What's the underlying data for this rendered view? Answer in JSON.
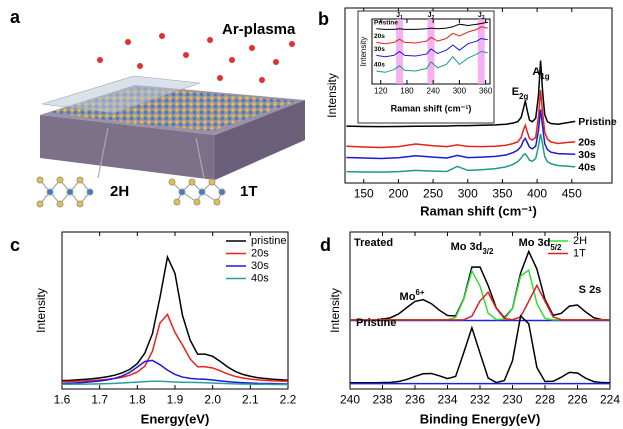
{
  "illustration": {
    "label": "a",
    "title": "Ar-plasma",
    "phases": [
      "2H",
      "1T"
    ]
  },
  "chart_data": [
    {
      "type": "line",
      "label": "b",
      "xlabel": "Raman shift (cm⁻¹)",
      "ylabel": "Intensity",
      "x": [
        125,
        150,
        175,
        200,
        225,
        250,
        270,
        285,
        300,
        320,
        340,
        355,
        365,
        372,
        377,
        380,
        383,
        386,
        389,
        393,
        398,
        402,
        405,
        408,
        411,
        415,
        420,
        430,
        445,
        455
      ],
      "xlim": [
        123,
        508
      ],
      "ylim": [
        0,
        100
      ],
      "xticks": [
        150,
        200,
        250,
        300,
        350,
        400,
        450
      ],
      "legend": "right",
      "series": [
        {
          "name": "Pristine",
          "color": "#000000",
          "values": [
            32.5,
            32.3,
            32.2,
            32.3,
            32.4,
            32.5,
            32.6,
            32.8,
            32.8,
            33,
            33.2,
            33.6,
            34.2,
            35,
            37.5,
            42,
            47,
            41,
            36,
            35,
            37,
            50,
            70,
            52,
            39,
            35,
            34,
            33.6,
            34.6,
            35.2
          ]
        },
        {
          "name": "20s",
          "color": "#e8211b",
          "values": [
            21,
            20.6,
            20.3,
            20.8,
            22.3,
            21.3,
            20.8,
            21.8,
            20.9,
            20.8,
            21,
            21.6,
            22.5,
            23.5,
            26,
            30,
            33,
            29,
            25.5,
            24.5,
            26,
            38,
            53,
            40,
            29,
            25,
            23.5,
            22.6,
            23.2,
            23.5
          ]
        },
        {
          "name": "30s",
          "color": "#1a1adb",
          "values": [
            14.6,
            14.3,
            14,
            14.4,
            15.6,
            14.8,
            14.3,
            15.8,
            14.5,
            14.8,
            15.2,
            16,
            17.3,
            18.8,
            21,
            24,
            25.5,
            23,
            20.5,
            19.5,
            21,
            30,
            42,
            32,
            22.5,
            19,
            17.6,
            16.8,
            16.6,
            16.4
          ]
        },
        {
          "name": "40s",
          "color": "#1f9a8a",
          "values": [
            6.5,
            6.3,
            6.2,
            6.5,
            7.2,
            6.8,
            6.6,
            9.5,
            7.2,
            7.6,
            8.2,
            9.2,
            10.6,
            12.2,
            14.2,
            16,
            16.6,
            15,
            13,
            12.4,
            14,
            21,
            28,
            22,
            15,
            12.2,
            11,
            10,
            9.6,
            9.2
          ]
        }
      ],
      "annotations": [
        {
          "text": "E",
          "sub": "2g"
        },
        {
          "text": "A",
          "sub": "1g"
        }
      ]
    },
    {
      "type": "line",
      "xlabel": "Raman shift (cm⁻¹)",
      "ylabel": "Intensity",
      "x": [
        110,
        130,
        150,
        163,
        175,
        200,
        225,
        235,
        250,
        270,
        285,
        300,
        320,
        340,
        350,
        365
      ],
      "xlim": [
        100,
        370
      ],
      "ylim": [
        0,
        100
      ],
      "xticks": [
        120,
        180,
        240,
        300,
        360
      ],
      "legend": "left",
      "bands": [
        {
          "label": "J",
          "sub": "1",
          "x": 163
        },
        {
          "label": "J",
          "sub": "2",
          "x": 235
        },
        {
          "label": "J",
          "sub": "3",
          "x": 350
        }
      ],
      "series": [
        {
          "name": "Pristine",
          "color": "#000000",
          "values": [
            85,
            84,
            84,
            85,
            84,
            84,
            85,
            86,
            85,
            86,
            88,
            92,
            90,
            92,
            93,
            95
          ]
        },
        {
          "name": "20s",
          "color": "#e8211b",
          "values": [
            64,
            62,
            64,
            69,
            64,
            63,
            66,
            72,
            66,
            70,
            78,
            74,
            80,
            84,
            88,
            86
          ]
        },
        {
          "name": "30s",
          "color": "#1a1adb",
          "values": [
            44,
            42,
            44,
            50,
            44,
            43,
            46,
            54,
            47,
            52,
            60,
            52,
            62,
            66,
            70,
            68
          ]
        },
        {
          "name": "40s",
          "color": "#1f9a8a",
          "values": [
            20,
            18,
            22,
            28,
            21,
            20,
            24,
            34,
            25,
            30,
            42,
            30,
            40,
            46,
            50,
            48
          ]
        }
      ]
    },
    {
      "type": "line",
      "label": "c",
      "xlabel": "Energy(eV)",
      "ylabel": "Intensity",
      "x": [
        1.6,
        1.62,
        1.64,
        1.66,
        1.68,
        1.7,
        1.72,
        1.74,
        1.76,
        1.78,
        1.8,
        1.82,
        1.84,
        1.86,
        1.88,
        1.9,
        1.92,
        1.94,
        1.96,
        1.98,
        2,
        2.02,
        2.04,
        2.06,
        2.08,
        2.1,
        2.12,
        2.14,
        2.16,
        2.18,
        2.2
      ],
      "xlim": [
        1.6,
        2.2
      ],
      "ylim": [
        0,
        100
      ],
      "xticks": [
        1.6,
        1.7,
        1.8,
        1.9,
        {
          "value": 2,
          "label": "2.0"
        },
        2.1,
        2.2
      ],
      "legend": "upper right",
      "series": [
        {
          "name": "pristine",
          "color": "#000000",
          "values": [
            5.3,
            5.5,
            5.8,
            6.1,
            6.5,
            7.1,
            7.8,
            8.8,
            10.3,
            12.5,
            16.2,
            22.9,
            35.2,
            58.2,
            84,
            73.6,
            46.8,
            31.2,
            22.2,
            22.2,
            20.8,
            17.6,
            14,
            11.2,
            9.3,
            8.1,
            7.2,
            6.7,
            6.2,
            5.9,
            5.6
          ]
        },
        {
          "name": "20s",
          "color": "#e8211b",
          "values": [
            4.7,
            4.8,
            5,
            5.2,
            5.4,
            5.7,
            6.1,
            6.7,
            7.5,
            8.8,
            10.8,
            14.6,
            24,
            42,
            47.5,
            36,
            28,
            19.2,
            14.2,
            14.2,
            13.4,
            11.6,
            9.6,
            8,
            7,
            6.3,
            5.8,
            5.5,
            5.2,
            5.1,
            4.9
          ]
        },
        {
          "name": "30s",
          "color": "#1a1adb",
          "values": [
            3.5,
            3.7,
            3.9,
            4.2,
            4.6,
            5.1,
            5.8,
            6.8,
            8.3,
            10.6,
            14,
            17.5,
            18.2,
            15.5,
            12,
            9.3,
            7.6,
            6.8,
            6.4,
            6.2,
            5.7,
            5.2,
            4.7,
            4.3,
            4,
            3.8,
            3.6,
            3.5,
            3.4,
            3.3,
            3.2
          ]
        },
        {
          "name": "40s",
          "color": "#2a9d9d",
          "values": [
            3,
            3,
            3.1,
            3.1,
            3.2,
            3.3,
            3.4,
            3.6,
            3.8,
            4.1,
            4.4,
            4.7,
            4.9,
            4.9,
            4.7,
            4.5,
            4.3,
            4.2,
            4.1,
            4,
            3.8,
            3.6,
            3.4,
            3.3,
            3.2,
            3.1,
            3,
            3,
            2.9,
            2.9,
            2.9
          ]
        }
      ]
    },
    {
      "type": "line",
      "label": "d",
      "xlabel": "Binding Energy(eV)",
      "ylabel": "Intensity",
      "x": [
        240,
        239.5,
        239,
        238.5,
        238,
        237.5,
        237,
        236.5,
        236,
        235.5,
        235,
        234.5,
        234,
        233.5,
        233,
        232.5,
        232,
        231.5,
        231,
        230.5,
        230,
        229.5,
        229,
        228.5,
        228,
        227.5,
        227,
        226.5,
        226,
        225.5,
        225,
        224.5,
        224
      ],
      "xlim": [
        240,
        224
      ],
      "ylim": [
        0,
        100
      ],
      "xticks": [
        240,
        238,
        236,
        234,
        232,
        230,
        228,
        226,
        224
      ],
      "legend": "upper right",
      "series": [
        {
          "color": "#000000",
          "values": [
            44,
            44,
            44,
            44.1,
            44.4,
            45.4,
            47.9,
            51.9,
            55.8,
            56.9,
            54.4,
            50.2,
            46.8,
            46.5,
            57.5,
            77.6,
            77.7,
            65.9,
            51.7,
            45.4,
            51.3,
            73.9,
            87.6,
            76.4,
            57,
            46.9,
            48.2,
            52.8,
            53.5,
            49.1,
            45.4,
            44.2,
            44
          ]
        },
        {
          "color": "#2020e0",
          "values": [
            43.6,
            43.6,
            43.6,
            43.6,
            43.6,
            43.6,
            43.6,
            43.6,
            43.6,
            43.6,
            43.6,
            43.6,
            43.6,
            43.6,
            43.6,
            43.6,
            43.6,
            43.6,
            43.6,
            43.6,
            43.6,
            43.6,
            43.6,
            43.6,
            43.6,
            43.6,
            43.6,
            43.6,
            43.6,
            43.6,
            43.6,
            43.6,
            43.6
          ]
        },
        {
          "name": "2H",
          "color": "#33dd33",
          "values": [
            44,
            44,
            44,
            44,
            44,
            44,
            44,
            44,
            44,
            44,
            44,
            44,
            44.1,
            45.6,
            57.2,
            75.2,
            65.6,
            48.3,
            44.3,
            44.5,
            51.2,
            72,
            75.7,
            54.4,
            45,
            44,
            44,
            44,
            44,
            44,
            44,
            44,
            44
          ]
        },
        {
          "name": "1T",
          "color": "#e02020",
          "values": [
            44,
            44,
            44,
            44,
            44,
            44,
            44,
            44,
            44,
            44,
            44,
            44,
            44,
            44,
            44.1,
            46.4,
            56.1,
            61.6,
            51.4,
            44.9,
            44.1,
            45.9,
            55.9,
            66,
            55.9,
            45.9,
            44.1,
            44,
            44,
            44,
            44,
            44,
            44
          ]
        },
        {
          "color": "#000000",
          "values": [
            4,
            4,
            4,
            4,
            4.1,
            4.2,
            4.8,
            6.1,
            8,
            9.7,
            9.9,
            8.4,
            6.6,
            8,
            23.2,
            39,
            22.9,
            7,
            4.1,
            5.4,
            18,
            46.6,
            41.6,
            13.7,
            4.8,
            4.9,
            7.5,
            10.6,
            10.2,
            6.9,
            4.7,
            4.1,
            4
          ]
        },
        {
          "color": "#2020e0",
          "values": [
            3.4,
            3.4,
            3.4,
            3.4,
            3.4,
            3.4,
            3.4,
            3.4,
            3.4,
            3.4,
            3.4,
            3.4,
            3.4,
            3.4,
            3.4,
            3.4,
            3.4,
            3.4,
            3.4,
            3.4,
            3.4,
            3.4,
            3.4,
            3.4,
            3.4,
            3.4,
            3.4,
            3.4,
            3.4,
            3.4,
            3.4,
            3.4,
            3.4
          ]
        }
      ],
      "annotations": [
        {
          "text": "Treated"
        },
        {
          "text": "Pristine"
        },
        {
          "text": "Mo",
          "sup": "6+"
        },
        {
          "text": "Mo 3d",
          "sub": "3/2"
        },
        {
          "text": "Mo 3d",
          "sub": "5/2"
        },
        {
          "text": "S 2s"
        }
      ]
    }
  ]
}
